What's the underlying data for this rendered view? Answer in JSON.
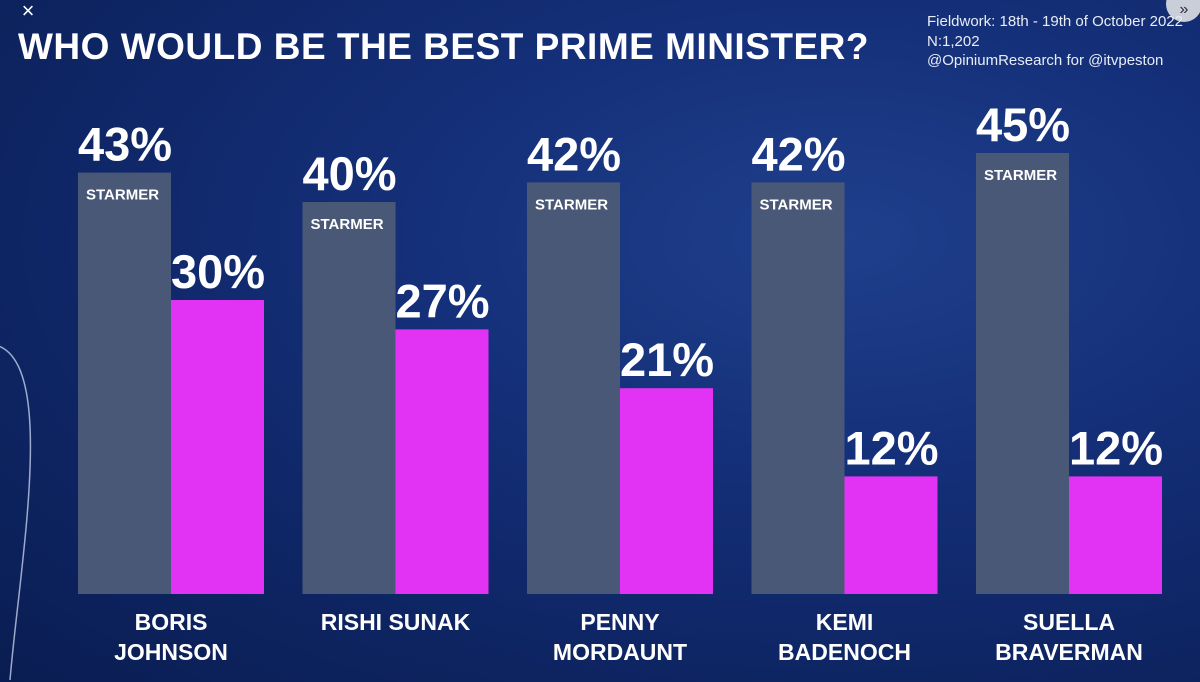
{
  "close_icon": "×",
  "next_icon": "»",
  "title": "WHO WOULD BE THE BEST PRIME MINISTER?",
  "meta": {
    "fieldwork": "Fieldwork: 18th - 19th of October 2022",
    "sample": "N:1,202",
    "source": "@OpiniumResearch for @itvpeston"
  },
  "colors": {
    "starmer": "#4a5878",
    "rival": "#e233f4",
    "background": "#0f2766"
  },
  "chart_data": {
    "type": "bar",
    "title": "WHO WOULD BE THE BEST PRIME MINISTER?",
    "categories": [
      [
        "BORIS",
        "JOHNSON"
      ],
      [
        "RISHI SUNAK"
      ],
      [
        "PENNY",
        "MORDAUNT"
      ],
      [
        "KEMI",
        "BADENOCH"
      ],
      [
        "SUELLA",
        "BRAVERMAN"
      ]
    ],
    "series": [
      {
        "name": "STARMER",
        "values": [
          43,
          40,
          42,
          42,
          45
        ],
        "labels": [
          "43%",
          "40%",
          "42%",
          "42%",
          "45%"
        ],
        "color": "#4a5878"
      },
      {
        "values": [
          30,
          27,
          21,
          12,
          12
        ],
        "labels": [
          "30%",
          "27%",
          "21%",
          "12%",
          "12%"
        ],
        "color": "#e233f4"
      }
    ],
    "ylim": [
      0,
      50
    ],
    "grid": false,
    "legend": "none"
  }
}
